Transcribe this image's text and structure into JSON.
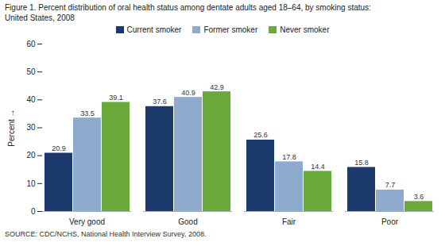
{
  "chart_data": {
    "type": "bar",
    "title": "Figure 1. Percent distribution of oral health status among dentate adults aged 18–64, by smoking status:",
    "subtitle": "United States, 2008",
    "caption": "SOURCE: CDC/NCHS, National Health Interview Survey, 2008.",
    "categories": [
      "Very good",
      "Good",
      "Fair",
      "Poor"
    ],
    "series": [
      {
        "name": "Current smoker",
        "color": "#1b3a6b",
        "values": [
          20.9,
          37.6,
          25.6,
          15.8
        ]
      },
      {
        "name": "Former smoker",
        "color": "#8eaacc",
        "values": [
          33.5,
          40.9,
          17.8,
          7.7
        ]
      },
      {
        "name": "Never smoker",
        "color": "#6aaa3a",
        "values": [
          39.1,
          42.9,
          14.4,
          3.6
        ]
      }
    ],
    "ylabel": "Percent",
    "ylim": [
      0,
      60
    ],
    "yticks": [
      0,
      10,
      20,
      30,
      40,
      50,
      60
    ],
    "grid": false,
    "legend": "top",
    "data_labels": true
  }
}
